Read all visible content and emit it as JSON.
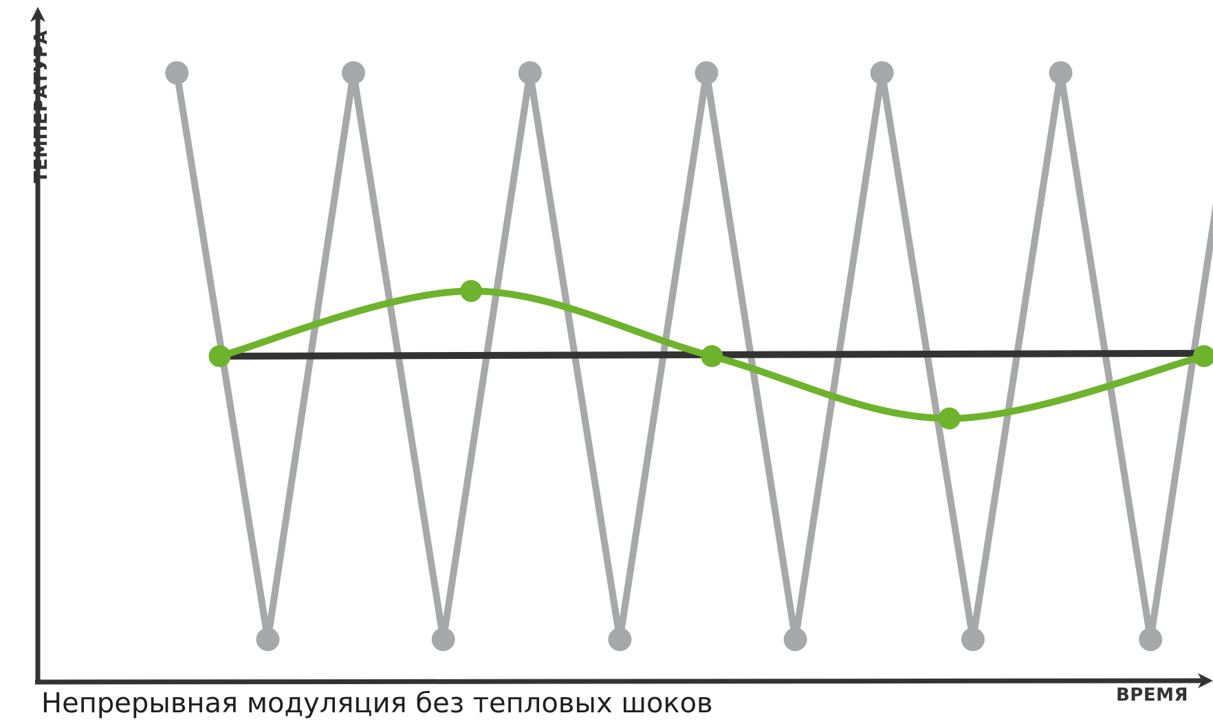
{
  "chart_data": {
    "type": "line",
    "ylabel": "ТЕМПЕРАТУРА",
    "xlabel": "ВРЕМЯ",
    "caption": "Непрерывная модуляция без тепловых шоков",
    "xlim": [
      0,
      1
    ],
    "ylim": [
      0,
      1
    ],
    "grid": false,
    "series": [
      {
        "name": "",
        "style": "zigzag",
        "color": "#a7a8aa",
        "x": [
          0.04,
          0.125,
          0.205,
          0.289,
          0.37,
          0.454,
          0.535,
          0.618,
          0.699,
          0.784,
          0.866,
          0.95,
          1.03
        ],
        "y": [
          1.0,
          0.0,
          1.0,
          0.0,
          1.0,
          0.0,
          1.0,
          0.0,
          1.0,
          0.0,
          1.0,
          0.0,
          1.0
        ]
      },
      {
        "name": "",
        "style": "flat",
        "color": "#333333",
        "x": [
          0.08,
          1.0
        ],
        "y": [
          0.5,
          0.505
        ]
      },
      {
        "name": "",
        "style": "smooth",
        "color": "#6db32c",
        "x": [
          0.08,
          0.315,
          0.54,
          0.762,
          1.0
        ],
        "y": [
          0.5,
          0.615,
          0.5,
          0.39,
          0.5
        ]
      }
    ]
  }
}
